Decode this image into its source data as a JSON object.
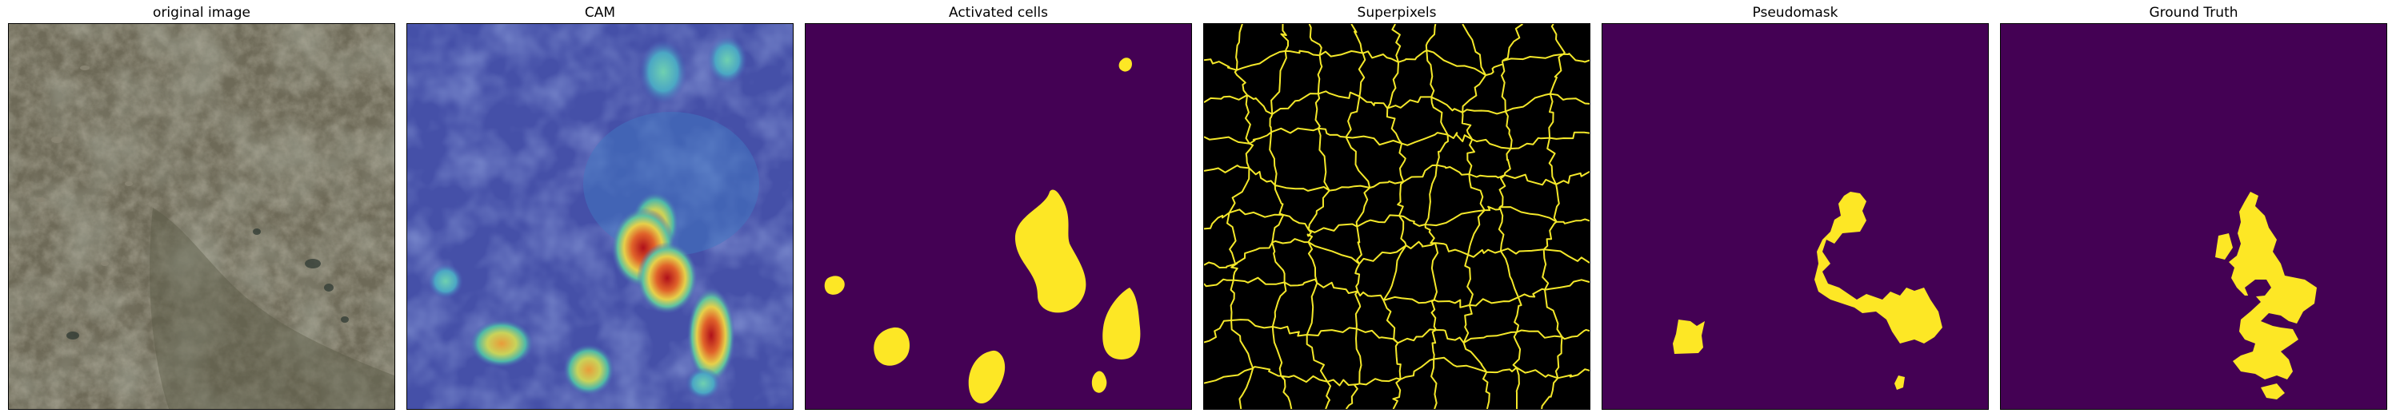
{
  "figure": {
    "panels": [
      {
        "title": "original image"
      },
      {
        "title": "CAM"
      },
      {
        "title": "Activated cells"
      },
      {
        "title": "Superpixels"
      },
      {
        "title": "Pseudomask"
      },
      {
        "title": "Ground Truth"
      }
    ]
  },
  "colors": {
    "mask_background": "#440154",
    "mask_foreground": "#fde725",
    "superpixel_boundary": "#f4e82a",
    "superpixel_background": "#000000"
  }
}
